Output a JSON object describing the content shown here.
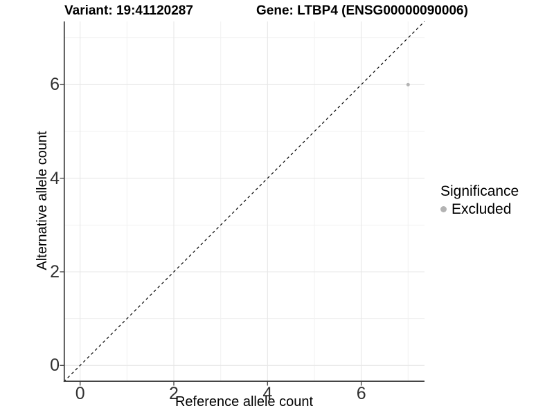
{
  "header": {
    "variant_title": "Variant: 19:41120287",
    "gene_title": "Gene: LTBP4 (ENSG00000090006)"
  },
  "axes": {
    "x": {
      "label": "Reference allele count",
      "tick_labels": [
        "0",
        "2",
        "4",
        "6"
      ]
    },
    "y": {
      "label": "Alternative allele count",
      "tick_labels": [
        "0",
        "2",
        "4",
        "6"
      ]
    }
  },
  "legend": {
    "title": "Significance",
    "items": [
      {
        "label": "Excluded",
        "color": "#b3b3b3"
      }
    ]
  },
  "chart_data": {
    "type": "scatter",
    "title": "Variant: 19:41120287 / Gene: LTBP4 (ENSG00000090006)",
    "xlabel": "Reference allele count",
    "ylabel": "Alternative allele count",
    "xlim": [
      -0.35,
      7.35
    ],
    "ylim": [
      -0.35,
      7.35
    ],
    "x_major_ticks": [
      0,
      2,
      4,
      6
    ],
    "x_minor_ticks": [
      1,
      3,
      5,
      7
    ],
    "y_major_ticks": [
      0,
      2,
      4,
      6
    ],
    "y_minor_ticks": [
      1,
      3,
      5,
      7
    ],
    "grid": true,
    "legend_position": "right",
    "series": [
      {
        "name": "Excluded",
        "color": "#b3b3b3",
        "point_radius": 2.5,
        "points": [
          {
            "x": 7,
            "y": 6
          }
        ]
      }
    ],
    "reference_line": {
      "type": "identity",
      "style": "dashed",
      "color": "#000000",
      "from": [
        -0.35,
        -0.35
      ],
      "to": [
        7.35,
        7.35
      ]
    }
  },
  "colors": {
    "background": "#ffffff",
    "grid_major": "#e7e7e7",
    "grid_minor": "#f1f1f1",
    "axis_line": "#383838",
    "tick_mark": "#4d4d4d",
    "tick_label": "#303030"
  }
}
